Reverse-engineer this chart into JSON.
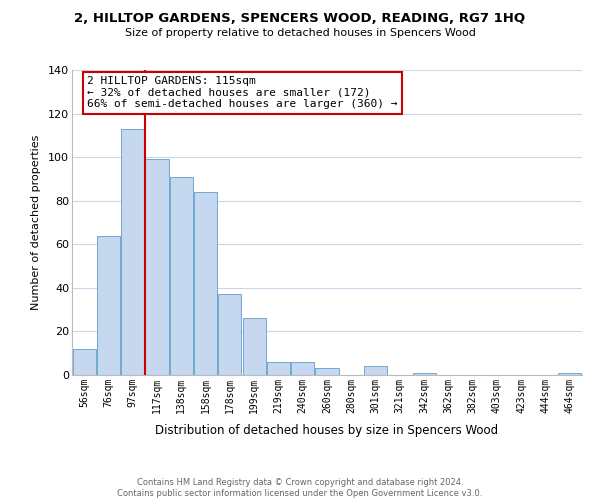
{
  "title": "2, HILLTOP GARDENS, SPENCERS WOOD, READING, RG7 1HQ",
  "subtitle": "Size of property relative to detached houses in Spencers Wood",
  "xlabel": "Distribution of detached houses by size in Spencers Wood",
  "ylabel": "Number of detached properties",
  "bar_labels": [
    "56sqm",
    "76sqm",
    "97sqm",
    "117sqm",
    "138sqm",
    "158sqm",
    "178sqm",
    "199sqm",
    "219sqm",
    "240sqm",
    "260sqm",
    "280sqm",
    "301sqm",
    "321sqm",
    "342sqm",
    "362sqm",
    "382sqm",
    "403sqm",
    "423sqm",
    "444sqm",
    "464sqm"
  ],
  "bar_values": [
    12,
    64,
    113,
    99,
    91,
    84,
    37,
    26,
    6,
    6,
    3,
    0,
    4,
    0,
    1,
    0,
    0,
    0,
    0,
    0,
    1
  ],
  "bar_color": "#c5d8f0",
  "bar_edge_color": "#6fa8d0",
  "vline_color": "#cc0000",
  "annotation_title": "2 HILLTOP GARDENS: 115sqm",
  "annotation_line1": "← 32% of detached houses are smaller (172)",
  "annotation_line2": "66% of semi-detached houses are larger (360) →",
  "annotation_box_color": "#ffffff",
  "annotation_box_edge": "#cc0000",
  "ylim": [
    0,
    140
  ],
  "yticks": [
    0,
    20,
    40,
    60,
    80,
    100,
    120,
    140
  ],
  "footer_line1": "Contains HM Land Registry data © Crown copyright and database right 2024.",
  "footer_line2": "Contains public sector information licensed under the Open Government Licence v3.0.",
  "bg_color": "#ffffff",
  "grid_color": "#c8d8ea"
}
